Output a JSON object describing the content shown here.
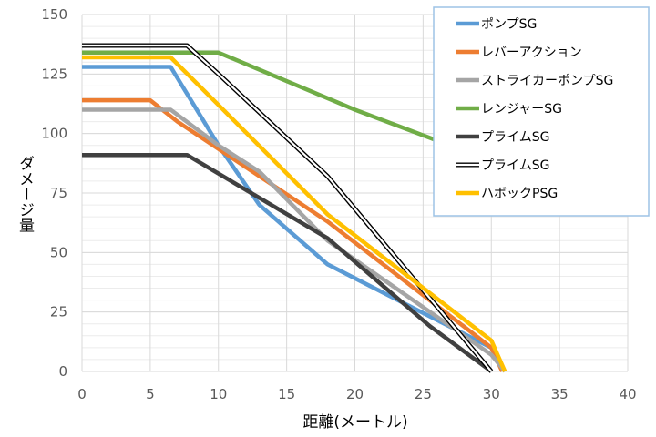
{
  "chart_data": {
    "type": "line",
    "title": "",
    "xlabel": "距離(メートル)",
    "ylabel": "ダメージ量",
    "xlim": [
      0,
      40
    ],
    "ylim": [
      0,
      150
    ],
    "xticks": [
      0,
      5,
      10,
      15,
      20,
      25,
      30,
      35,
      40
    ],
    "yticks": [
      0,
      25,
      50,
      75,
      100,
      125,
      150
    ],
    "grid": true,
    "legend_position": "top-right",
    "series": [
      {
        "name": "ポンプSG",
        "color": "#5b9bd5",
        "style": "solid",
        "x": [
          0,
          6.5,
          10,
          13,
          18,
          30,
          31
        ],
        "y": [
          128,
          128,
          95,
          70,
          45,
          10,
          0
        ]
      },
      {
        "name": "レバーアクション",
        "color": "#ed7d31",
        "style": "solid",
        "x": [
          0,
          5,
          7,
          18,
          30,
          30.8
        ],
        "y": [
          114,
          114,
          105,
          63,
          10,
          0
        ]
      },
      {
        "name": "ストライカーポンプSG",
        "color": "#a5a5a5",
        "style": "solid",
        "x": [
          0,
          6.5,
          10,
          13,
          18,
          30,
          31
        ],
        "y": [
          110,
          110,
          95,
          84,
          55,
          7,
          0
        ]
      },
      {
        "name": "レンジャーSG",
        "color": "#70ad47",
        "style": "solid",
        "x": [
          0,
          10,
          20,
          40
        ],
        "y": [
          134,
          134,
          110,
          67
        ]
      },
      {
        "name": "プライムSG",
        "color": "#404040",
        "style": "solid",
        "x": [
          0,
          7.7,
          18,
          25.5,
          30
        ],
        "y": [
          91,
          91,
          56,
          19,
          0
        ]
      },
      {
        "name": "プライムSG",
        "color": "#000000",
        "style": "double",
        "x": [
          0,
          7.7,
          10,
          18,
          30
        ],
        "y": [
          137,
          137,
          125,
          82,
          0
        ]
      },
      {
        "name": "ハボックPSG",
        "color": "#ffc000",
        "style": "solid",
        "x": [
          0,
          6.5,
          10,
          18,
          30,
          31
        ],
        "y": [
          132,
          132,
          112,
          66,
          13,
          0
        ]
      }
    ]
  }
}
